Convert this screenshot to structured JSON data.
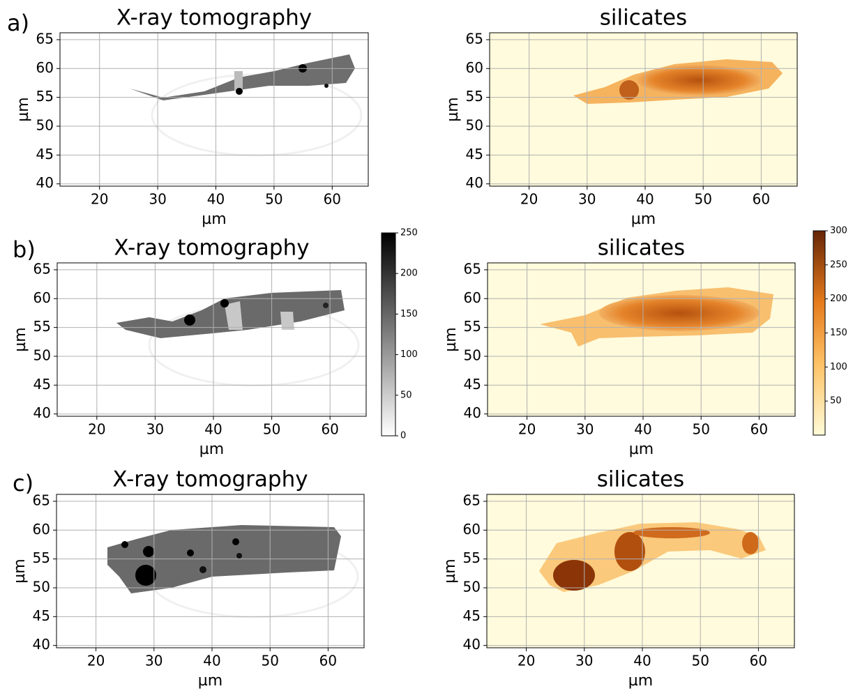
{
  "chart_data": [
    {
      "type": "heatmap",
      "panel_label": "a)",
      "title": "X-ray tomography",
      "xlabel": "µm",
      "ylabel": "µm",
      "xlim": [
        13.2,
        66.2
      ],
      "ylim": [
        39.6,
        66.2
      ],
      "xticks": [
        20,
        30,
        40,
        50,
        60
      ],
      "yticks": [
        40,
        45,
        50,
        55,
        60,
        65
      ],
      "grid": true,
      "colormap": "gray_r"
    },
    {
      "type": "heatmap",
      "title": "silicates",
      "xlabel": "µm",
      "ylabel": "µm",
      "xlim": [
        13.2,
        66.2
      ],
      "ylim": [
        39.6,
        66.2
      ],
      "xticks": [
        20,
        30,
        40,
        50,
        60
      ],
      "yticks": [
        40,
        45,
        50,
        55,
        60,
        65
      ],
      "grid": true,
      "colormap": "YlOrBr"
    },
    {
      "type": "heatmap",
      "panel_label": "b)",
      "title": "X-ray tomography",
      "xlabel": "µm",
      "ylabel": "µm",
      "xlim": [
        13.2,
        66.2
      ],
      "ylim": [
        39.6,
        66.2
      ],
      "xticks": [
        20,
        30,
        40,
        50,
        60
      ],
      "yticks": [
        40,
        45,
        50,
        55,
        60,
        65
      ],
      "grid": true,
      "colormap": "gray_r",
      "colorbar": {
        "lim": [
          0,
          250
        ],
        "ticks": [
          0,
          50,
          100,
          150,
          200,
          250
        ]
      }
    },
    {
      "type": "heatmap",
      "title": "silicates",
      "xlabel": "µm",
      "ylabel": "µm",
      "xlim": [
        13.2,
        66.2
      ],
      "ylim": [
        39.6,
        66.2
      ],
      "xticks": [
        20,
        30,
        40,
        50,
        60
      ],
      "yticks": [
        40,
        45,
        50,
        55,
        60,
        65
      ],
      "grid": true,
      "colormap": "YlOrBr",
      "colorbar": {
        "lim": [
          0,
          300
        ],
        "ticks": [
          50,
          100,
          150,
          200,
          250,
          300
        ]
      }
    },
    {
      "type": "heatmap",
      "panel_label": "c)",
      "title": "X-ray tomography",
      "xlabel": "µm",
      "ylabel": "µm",
      "xlim": [
        13.2,
        66.2
      ],
      "ylim": [
        39.6,
        66.2
      ],
      "xticks": [
        20,
        30,
        40,
        50,
        60
      ],
      "yticks": [
        40,
        45,
        50,
        55,
        60,
        65
      ],
      "grid": true,
      "colormap": "gray_r"
    },
    {
      "type": "heatmap",
      "title": "silicates",
      "xlabel": "µm",
      "ylabel": "µm",
      "xlim": [
        13.2,
        66.2
      ],
      "ylim": [
        39.6,
        66.2
      ],
      "xticks": [
        20,
        30,
        40,
        50,
        60
      ],
      "yticks": [
        40,
        45,
        50,
        55,
        60,
        65
      ],
      "grid": true,
      "colormap": "YlOrBr"
    }
  ]
}
